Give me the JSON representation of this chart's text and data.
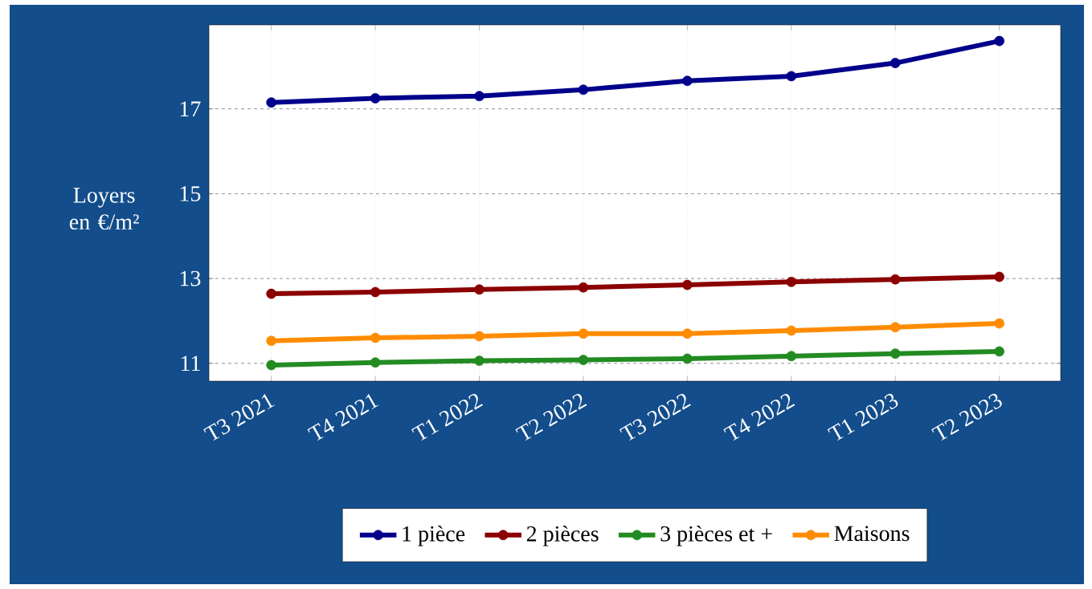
{
  "chart_data": {
    "type": "line",
    "ylabel": "Loyers en €/m²",
    "categories": [
      "T3 2021",
      "T4 2021",
      "T1 2022",
      "T2 2022",
      "T3 2022",
      "T4 2022",
      "T1 2023",
      "T2 2023"
    ],
    "series": [
      {
        "name": "1 pièce",
        "color": "#00008b",
        "values": [
          17.15,
          17.25,
          17.3,
          17.45,
          17.66,
          17.77,
          18.08,
          18.6
        ]
      },
      {
        "name": "2 pièces",
        "color": "#8b0000",
        "values": [
          12.64,
          12.68,
          12.74,
          12.79,
          12.85,
          12.92,
          12.98,
          13.04
        ]
      },
      {
        "name": "3 pièces et +",
        "color": "#228b22",
        "values": [
          10.96,
          11.02,
          11.06,
          11.08,
          11.11,
          11.17,
          11.23,
          11.28
        ]
      },
      {
        "name": "Maisons",
        "color": "#ff8c00",
        "values": [
          11.53,
          11.6,
          11.64,
          11.7,
          11.7,
          11.77,
          11.85,
          11.94
        ]
      }
    ],
    "ylim": [
      10.58,
      18.98
    ],
    "yticks": [
      11,
      13,
      15,
      17
    ],
    "grid": true,
    "legend": "bottom",
    "marker": "circle",
    "line_style": "solid"
  }
}
